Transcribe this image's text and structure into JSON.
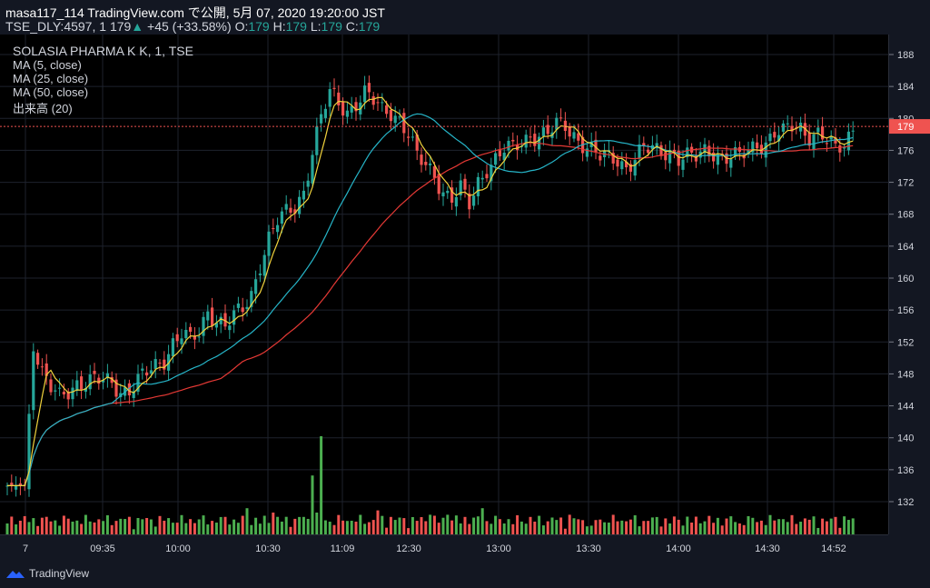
{
  "header": {
    "line1": "masa117_114 TradingView.com で公開, 5月 07, 2020 19:20:00 JST",
    "symbol": "TSE_DLY:4597, 1",
    "price": "179",
    "change_arrow": "▲",
    "change": "+45 (+33.58%)",
    "o_label": "O:",
    "o_value": "179",
    "h_label": "H:",
    "h_value": "179",
    "l_label": "L:",
    "l_value": "179",
    "c_label": "C:",
    "c_value": "179"
  },
  "legend": {
    "title": "SOLASIA PHARMA K K, 1, TSE",
    "ma5": "MA (5, close)",
    "ma25": "MA (25, close)",
    "ma50": "MA (50, close)",
    "volume": "出来高 (20)"
  },
  "footer": {
    "brand": "TradingView"
  },
  "colors": {
    "up": "#26a69a",
    "down": "#ef5350",
    "ma5": "#f0d23c",
    "ma25": "#26b5c8",
    "ma50": "#e53935",
    "vol_up": "#4caf50",
    "vol_down": "#ef5350",
    "last_price_bg": "#ef5350"
  },
  "chart_data": {
    "type": "candlestick",
    "price_axis": {
      "ticks": [
        132,
        136,
        140,
        144,
        148,
        152,
        156,
        160,
        164,
        168,
        172,
        176,
        180,
        184,
        188
      ]
    },
    "last_price": 179,
    "time_axis": [
      "7",
      "09:35",
      "10:00",
      "10:30",
      "11:09",
      "12:30",
      "13:00",
      "13:30",
      "14:00",
      "14:30",
      "14:52"
    ],
    "close_key_points": [
      [
        0,
        134
      ],
      [
        2,
        134
      ],
      [
        4,
        134
      ],
      [
        6,
        152
      ],
      [
        8,
        148
      ],
      [
        10,
        146
      ],
      [
        12,
        145
      ],
      [
        14,
        146
      ],
      [
        16,
        147
      ],
      [
        18,
        147
      ],
      [
        20,
        147
      ],
      [
        22,
        147
      ],
      [
        24,
        147
      ],
      [
        26,
        146
      ],
      [
        28,
        146
      ],
      [
        30,
        147
      ],
      [
        32,
        148
      ],
      [
        34,
        149
      ],
      [
        36,
        150
      ],
      [
        38,
        152
      ],
      [
        40,
        153
      ],
      [
        42,
        152
      ],
      [
        44,
        153
      ],
      [
        46,
        156
      ],
      [
        48,
        155
      ],
      [
        50,
        154
      ],
      [
        52,
        155
      ],
      [
        54,
        156
      ],
      [
        56,
        158
      ],
      [
        58,
        162
      ],
      [
        60,
        165
      ],
      [
        62,
        167
      ],
      [
        64,
        168
      ],
      [
        66,
        169
      ],
      [
        68,
        171
      ],
      [
        70,
        176
      ],
      [
        72,
        180
      ],
      [
        74,
        183
      ],
      [
        76,
        182
      ],
      [
        78,
        181
      ],
      [
        80,
        182
      ],
      [
        82,
        183
      ],
      [
        84,
        182
      ],
      [
        86,
        181
      ],
      [
        88,
        181
      ],
      [
        90,
        180
      ],
      [
        92,
        178
      ],
      [
        94,
        175
      ],
      [
        96,
        174
      ],
      [
        98,
        173
      ],
      [
        100,
        171
      ],
      [
        102,
        170
      ],
      [
        104,
        171
      ],
      [
        106,
        169
      ],
      [
        108,
        172
      ],
      [
        110,
        174
      ],
      [
        112,
        175
      ],
      [
        114,
        176
      ],
      [
        116,
        176
      ],
      [
        118,
        177
      ],
      [
        120,
        178
      ],
      [
        122,
        178
      ],
      [
        124,
        178
      ],
      [
        126,
        179
      ],
      [
        128,
        179
      ],
      [
        130,
        178
      ],
      [
        132,
        177
      ],
      [
        134,
        176
      ],
      [
        136,
        175
      ],
      [
        138,
        175
      ],
      [
        140,
        175
      ],
      [
        142,
        174
      ],
      [
        144,
        175
      ],
      [
        146,
        176
      ],
      [
        148,
        176
      ],
      [
        150,
        176
      ],
      [
        152,
        176
      ],
      [
        154,
        175
      ],
      [
        156,
        175
      ],
      [
        158,
        175
      ],
      [
        160,
        176
      ],
      [
        162,
        176
      ],
      [
        164,
        175
      ],
      [
        166,
        175
      ],
      [
        168,
        175
      ],
      [
        170,
        176
      ],
      [
        172,
        177
      ],
      [
        174,
        177
      ],
      [
        176,
        178
      ],
      [
        178,
        178
      ],
      [
        180,
        179
      ],
      [
        182,
        179
      ],
      [
        184,
        178
      ],
      [
        186,
        178
      ],
      [
        188,
        177
      ],
      [
        190,
        176
      ],
      [
        192,
        177
      ],
      [
        194,
        179
      ]
    ],
    "volume_spikes": [
      [
        55,
        12
      ],
      [
        61,
        10
      ],
      [
        68,
        8
      ],
      [
        70,
        27
      ],
      [
        71,
        10
      ],
      [
        72,
        45
      ],
      [
        85,
        11
      ],
      [
        88,
        8
      ],
      [
        97,
        9
      ],
      [
        101,
        9
      ],
      [
        105,
        8
      ],
      [
        109,
        12
      ],
      [
        113,
        7
      ],
      [
        120,
        8
      ],
      [
        124,
        6
      ],
      [
        129,
        9
      ],
      [
        134,
        4
      ],
      [
        140,
        6
      ],
      [
        152,
        5
      ],
      [
        160,
        6
      ],
      [
        168,
        5
      ],
      [
        177,
        7
      ],
      [
        188,
        6
      ],
      [
        190,
        8
      ]
    ]
  }
}
